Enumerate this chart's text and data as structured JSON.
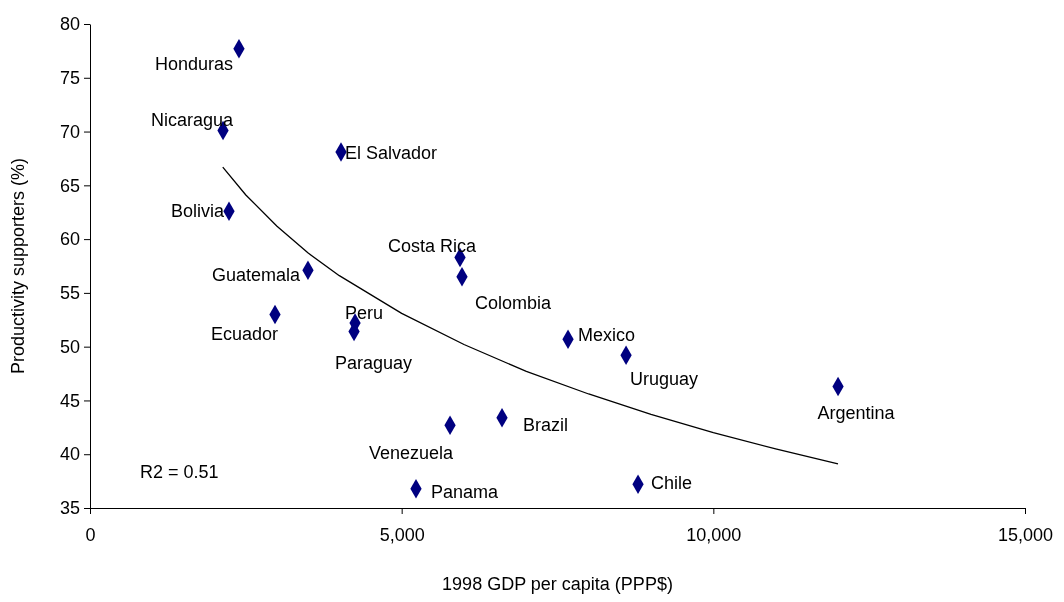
{
  "chart_data": {
    "type": "scatter",
    "xlabel": "1998 GDP per capita (PPP$)",
    "ylabel": "Productivity supporters (%)",
    "xlim": [
      0,
      15000
    ],
    "xticks": [
      0,
      {
        "value": 5000,
        "label": "5,000"
      },
      {
        "value": 10000,
        "label": "10,000"
      },
      {
        "value": 15000,
        "label": "15,000"
      }
    ],
    "ylim": [
      35,
      80
    ],
    "yticks": [
      35,
      40,
      45,
      50,
      55,
      60,
      65,
      70,
      75,
      80
    ],
    "series": [
      {
        "color": "#000080",
        "marker": "diamond",
        "x": [
          2390,
          2134,
          4027,
          2230,
          3497,
          5936,
          5968,
          2968,
          4252,
          4236,
          7669,
          8600,
          12001,
          6610,
          5776,
          5230,
          8792
        ],
        "values": [
          77.7,
          70.1,
          68.1,
          62.6,
          57.1,
          58.3,
          56.5,
          53.0,
          52.2,
          51.4,
          50.7,
          49.2,
          46.3,
          43.4,
          42.7,
          36.8,
          37.2
        ]
      },
      {
        "type": "line",
        "color": "#000000",
        "marker": "none",
        "line_style": "solid",
        "x": [
          2130,
          2500,
          3000,
          3500,
          4000,
          5000,
          6000,
          7000,
          8000,
          9000,
          10000,
          11000,
          12000
        ],
        "values": [
          66.7,
          64.1,
          61.2,
          58.7,
          56.6,
          53.1,
          50.2,
          47.7,
          45.6,
          43.7,
          42.0,
          40.5,
          39.1
        ]
      }
    ],
    "annotations": [
      {
        "text": "Honduras",
        "x": 2390,
        "y": 77.7
      },
      {
        "text": "Nicaragua",
        "x": 2134,
        "y": 70.1
      },
      {
        "text": "El Salvador",
        "x": 4027,
        "y": 68.1
      },
      {
        "text": "Bolivia",
        "x": 2230,
        "y": 62.6
      },
      {
        "text": "Guatemala",
        "x": 3497,
        "y": 57.1
      },
      {
        "text": "Costa Rica",
        "x": 5936,
        "y": 58.3
      },
      {
        "text": "Colombia",
        "x": 5968,
        "y": 56.5
      },
      {
        "text": "Ecuador",
        "x": 2968,
        "y": 53.0
      },
      {
        "text": "Peru",
        "x": 4252,
        "y": 52.2
      },
      {
        "text": "Paraguay",
        "x": 4236,
        "y": 51.4
      },
      {
        "text": "Mexico",
        "x": 7669,
        "y": 50.7
      },
      {
        "text": "Uruguay",
        "x": 8600,
        "y": 49.2
      },
      {
        "text": "Argentina",
        "x": 12001,
        "y": 46.3
      },
      {
        "text": "Brazil",
        "x": 6610,
        "y": 43.4
      },
      {
        "text": "Venezuela",
        "x": 5776,
        "y": 42.7
      },
      {
        "text": "Panama",
        "x": 5230,
        "y": 36.8
      },
      {
        "text": "Chile",
        "x": 8792,
        "y": 37.2
      },
      "R2 = 0.51"
    ]
  }
}
